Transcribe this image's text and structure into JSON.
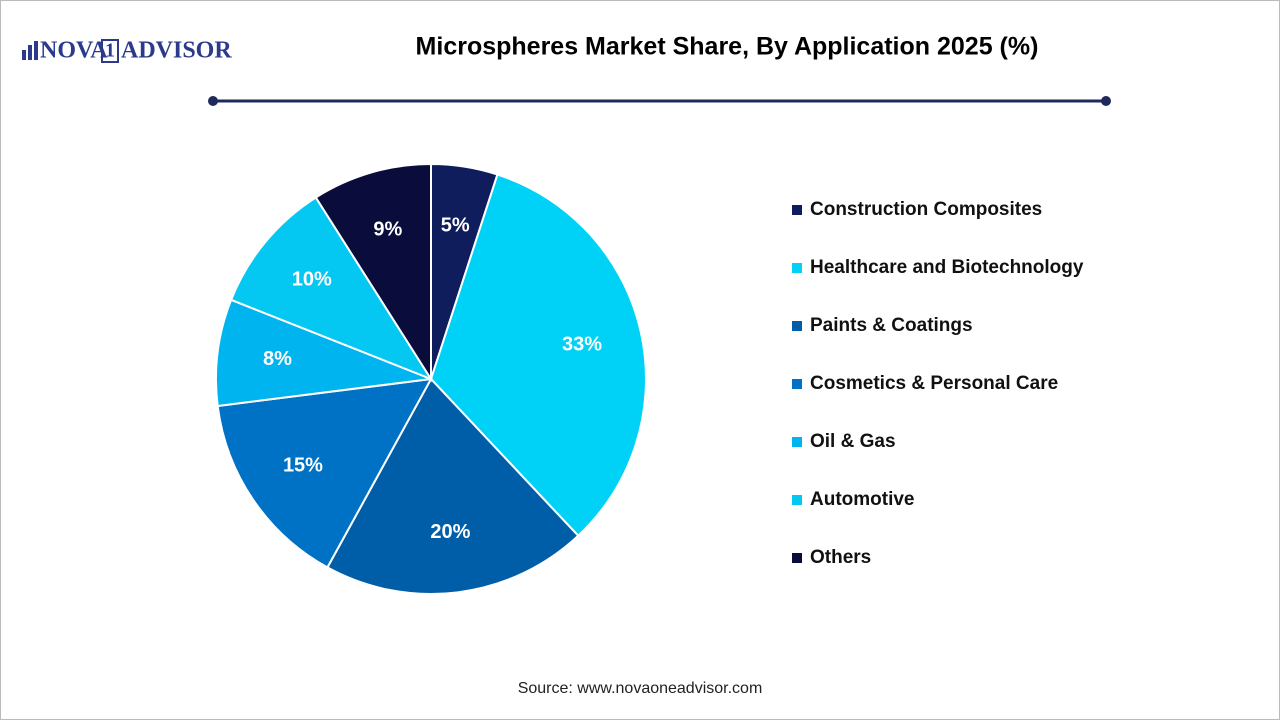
{
  "logo": {
    "left": "NOVA",
    "mid": "1",
    "right": "ADVISOR"
  },
  "chart_data": {
    "type": "pie",
    "title": "Microspheres Market Share, By Application 2025 (%)",
    "categories": [
      "Construction Composites",
      "Healthcare and Biotechnology",
      "Paints & Coatings",
      "Cosmetics & Personal Care",
      "Oil & Gas",
      "Automotive",
      "Others"
    ],
    "values": [
      5,
      33,
      20,
      15,
      8,
      10,
      9
    ],
    "value_labels": [
      "5%",
      "33%",
      "20%",
      "15%",
      "8%",
      "10%",
      "9%"
    ],
    "colors": [
      "#0f1d5c",
      "#00d2f7",
      "#005ea8",
      "#0072c6",
      "#00b4ef",
      "#05c8f2",
      "#0a0c3c"
    ],
    "legend": "right"
  },
  "source": "Source: www.novaoneadvisor.com"
}
